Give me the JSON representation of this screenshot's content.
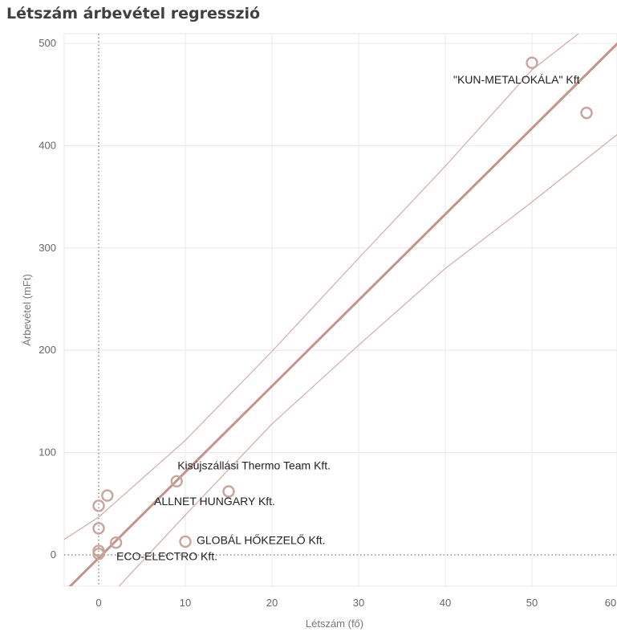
{
  "chart_data": {
    "type": "scatter",
    "title": "Létszám árbevétel regresszió",
    "xlabel": "Létszám (fő)",
    "ylabel": "Árbevétel (mFt)",
    "xlim": [
      -4,
      60
    ],
    "ylim": [
      -30,
      505
    ],
    "xticks": [
      0,
      10,
      20,
      30,
      40,
      50,
      60
    ],
    "yticks": [
      0,
      100,
      200,
      300,
      400,
      500
    ],
    "grid": true,
    "reference_lines": {
      "x": 0,
      "y": 0,
      "style": "dotted"
    },
    "colors": {
      "marker": "#c9a49c",
      "trend": "#c4938b",
      "band": "#d8aaa4",
      "grid": "#e8e8e8"
    },
    "points": [
      {
        "x": 50,
        "y": 481,
        "label": "\"KUN-METALOKÁLA\" Kft"
      },
      {
        "x": 56.3,
        "y": 432,
        "label": ""
      },
      {
        "x": 9,
        "y": 72,
        "label": "Kisújszállási Thermo Team Kft."
      },
      {
        "x": 15,
        "y": 62,
        "label": "ALLNET HUNGARY Kft."
      },
      {
        "x": 10,
        "y": 13,
        "label": "GLOBÁL HŐKEZELŐ Kft."
      },
      {
        "x": 1,
        "y": 58,
        "label": ""
      },
      {
        "x": 0,
        "y": 48,
        "label": ""
      },
      {
        "x": 0,
        "y": 26,
        "label": ""
      },
      {
        "x": 2,
        "y": 12,
        "label": ""
      },
      {
        "x": 0,
        "y": 4,
        "label": ""
      },
      {
        "x": 0,
        "y": 1,
        "label": "ECO-ELECTRO Kft."
      }
    ],
    "trend_line": {
      "slope": 8.4,
      "intercept": -3
    },
    "confidence_band": [
      {
        "x": -4,
        "upper": 15,
        "lower": -78
      },
      {
        "x": 0,
        "upper": 37,
        "lower": -52
      },
      {
        "x": 10,
        "upper": 112,
        "lower": 39
      },
      {
        "x": 20,
        "upper": 199,
        "lower": 128
      },
      {
        "x": 30,
        "upper": 290,
        "lower": 205
      },
      {
        "x": 40,
        "upper": 380,
        "lower": 280
      },
      {
        "x": 50,
        "upper": 474,
        "lower": 345
      },
      {
        "x": 60,
        "upper": 540,
        "lower": 412
      }
    ]
  }
}
